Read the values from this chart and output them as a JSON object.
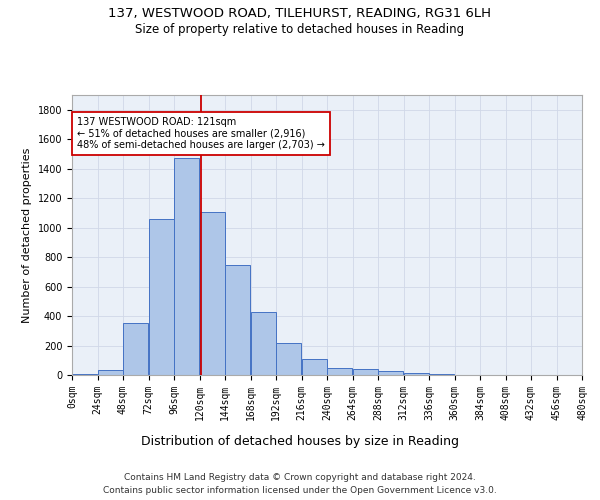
{
  "title_line1": "137, WESTWOOD ROAD, TILEHURST, READING, RG31 6LH",
  "title_line2": "Size of property relative to detached houses in Reading",
  "xlabel": "Distribution of detached houses by size in Reading",
  "ylabel": "Number of detached properties",
  "bin_edges": [
    0,
    24,
    48,
    72,
    96,
    120,
    144,
    168,
    192,
    216,
    240,
    264,
    288,
    312,
    336,
    360,
    384,
    408,
    432,
    456,
    480
  ],
  "bar_heights": [
    10,
    35,
    350,
    1060,
    1470,
    1105,
    745,
    430,
    220,
    108,
    50,
    40,
    25,
    15,
    5,
    3,
    2,
    1,
    1,
    1
  ],
  "bar_color": "#aec6e8",
  "bar_edge_color": "#4472c4",
  "vline_x": 121,
  "vline_color": "#cc0000",
  "annotation_text": "137 WESTWOOD ROAD: 121sqm\n← 51% of detached houses are smaller (2,916)\n48% of semi-detached houses are larger (2,703) →",
  "annotation_box_color": "#cc0000",
  "ylim": [
    0,
    1900
  ],
  "yticks": [
    0,
    200,
    400,
    600,
    800,
    1000,
    1200,
    1400,
    1600,
    1800
  ],
  "xtick_labels": [
    "0sqm",
    "24sqm",
    "48sqm",
    "72sqm",
    "96sqm",
    "120sqm",
    "144sqm",
    "168sqm",
    "192sqm",
    "216sqm",
    "240sqm",
    "264sqm",
    "288sqm",
    "312sqm",
    "336sqm",
    "360sqm",
    "384sqm",
    "408sqm",
    "432sqm",
    "456sqm",
    "480sqm"
  ],
  "footer_line1": "Contains HM Land Registry data © Crown copyright and database right 2024.",
  "footer_line2": "Contains public sector information licensed under the Open Government Licence v3.0.",
  "bg_color": "#ffffff",
  "grid_color": "#d0d8e8",
  "title_fontsize": 9.5,
  "subtitle_fontsize": 8.5,
  "ylabel_fontsize": 8,
  "xlabel_fontsize": 9,
  "tick_fontsize": 7,
  "footer_fontsize": 6.5,
  "annotation_fontsize": 7
}
